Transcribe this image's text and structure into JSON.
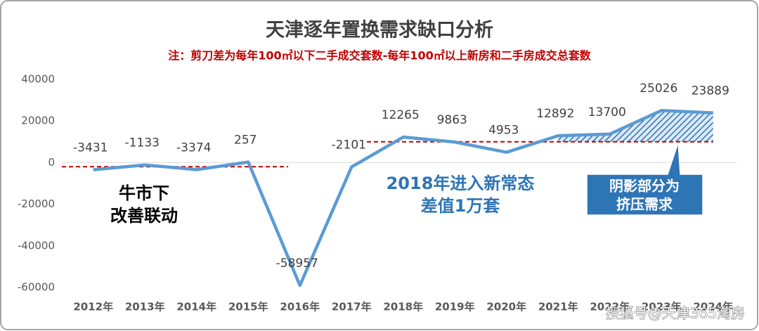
{
  "chart_data": {
    "type": "line",
    "title": "天津逐年置换需求缺口分析",
    "subtitle": "注：剪刀差为每年100㎡以下二手成交套数-每年100㎡以上新房和二手房成交总套数",
    "categories": [
      "2012年",
      "2013年",
      "2014年",
      "2015年",
      "2016年",
      "2017年",
      "2018年",
      "2019年",
      "2020年",
      "2021年",
      "2022年",
      "2023年",
      "2024年"
    ],
    "series": [
      {
        "color": "#5b9bd5",
        "values": [
          -3431,
          -1133,
          -3374,
          257,
          -58957,
          -2101,
          12265,
          9863,
          4953,
          12892,
          13700,
          25026,
          23889
        ]
      }
    ],
    "ylim": [
      -65000,
      45000
    ],
    "yticks": [
      -60000,
      -40000,
      -20000,
      0,
      20000,
      40000
    ],
    "grid": false,
    "reference_lines": [
      {
        "value": -2000,
        "color": "#c00000"
      },
      {
        "value": 10000,
        "color": "#c00000"
      }
    ],
    "notes": [
      [
        "牛市下",
        "改善联动"
      ],
      [
        "2018年进入新常态",
        "差值1万套"
      ]
    ],
    "callout": [
      "阴影部分为",
      "挤压需求"
    ],
    "watermark": "搜狐号@天津365淘房"
  }
}
